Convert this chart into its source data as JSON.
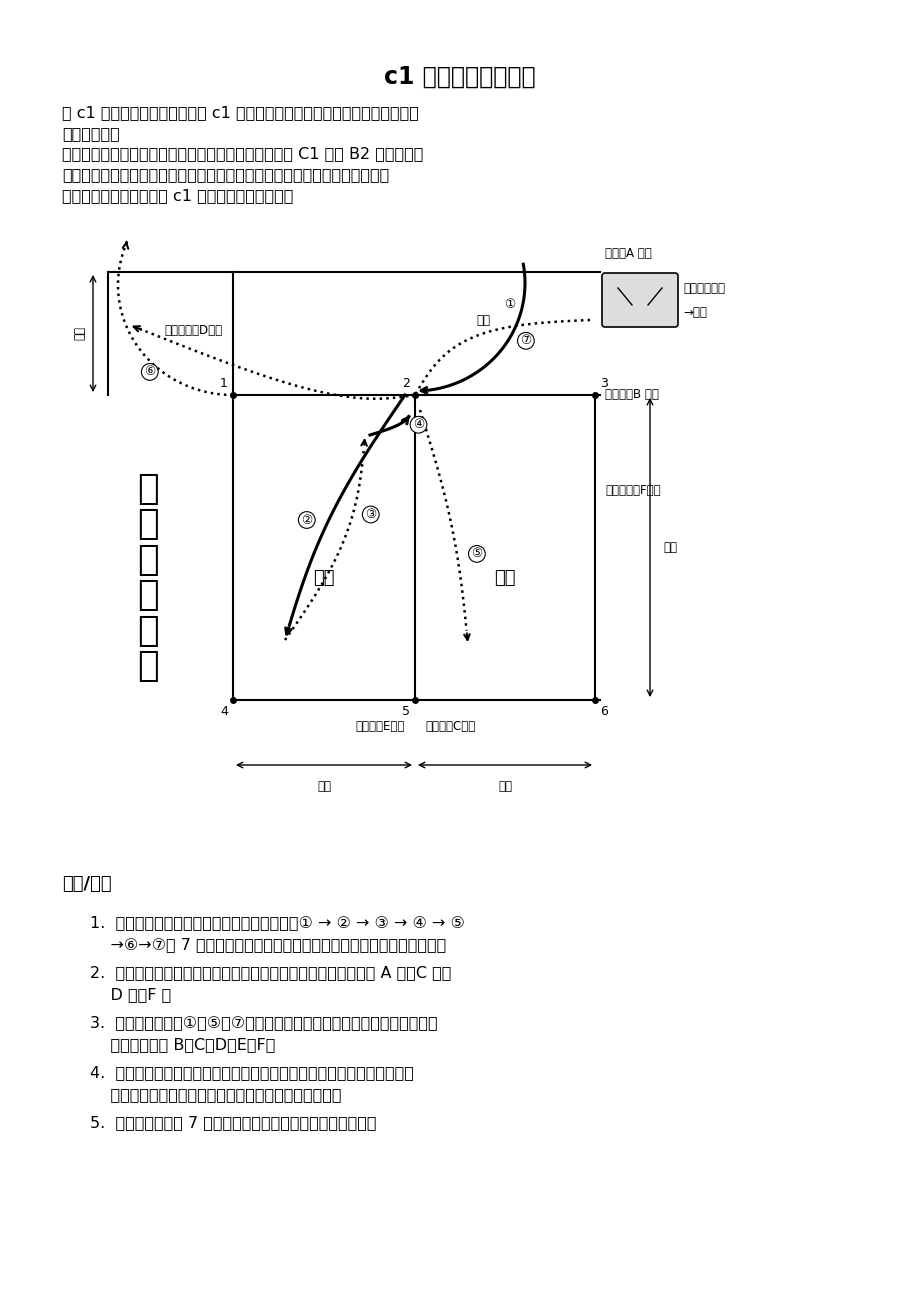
{
  "title": "c1 倒桩移库技巧图解",
  "bg_color": "#ffffff",
  "intro_para1_line1": "在 c1 倒桩移库技巧图解中，将 c1 倒桩移库技巧分解进行讲解，并为大家画出",
  "intro_para1_line2": "了行驶轨迹。",
  "intro_para2_line1": "倒桩移库技巧是驾驶员考试中的一项重要科目，无论是 C1 还是 B2 都是必考项",
  "intro_para2_line2": "目，不过略有区别，由于两者所准驾车型不同，所以考试场地的设置也就略有",
  "intro_para2_line3": "区别了。本文主要讲解了 c1 考试的倒桩移库技巧。",
  "steps_title": "步骤/方法",
  "step1_line1": "1.  在考试过程中，考将车辆的行驶轨迹必须按① → ② → ③ → ④ → ⑤",
  "step1_line2": "    →⑥→⑦这 7 个轨迹顺序行驶，其中每个轨迹都是单向倒将车辆或前进。",
  "step2_line1": "2.  将车辆身出线：在考试过程中考将车辆的任何部分都不能越过 A 线、C 线、",
  "step2_line2": "    D 线、F 线",
  "step3_line1": "3.  将车辆辆在完成①、⑤、⑦步骤停止时，将车辆身任何部位垂直投影不得",
  "step3_line2": "    压、超库位线 B、C、D、E、F。",
  "step4_line1": "4.  考试期间除按规定线路行驶需改变将车辆行方向（由倒将车辆改前行或",
  "step4_line2": "    反之）而停将车辆外，其余停将车辆为违规停将车辆。",
  "step5_line1": "5.  考试合格标准第 7 条是指不得在将车辆辆停止时打方向盘。",
  "label_A": "边线（A 线）",
  "label_B": "库端线（B 线）",
  "label_D": "乙库边线（D线）",
  "label_F": "甲库边线（F线）",
  "label_E": "库中线（E线）",
  "label_C": "库底线（C线）",
  "label_yi": "乙库",
  "label_jia": "甲库",
  "label_start": "起点（车头）",
  "label_test_car": "→考车",
  "label_car_tail": "① 车尾",
  "label_lu": "路宽",
  "label_zhu_chang": "柱长",
  "label_zhu_kuan": "桩宽",
  "label_daodao": "倒\n桩\n移\n库\n图\n解"
}
